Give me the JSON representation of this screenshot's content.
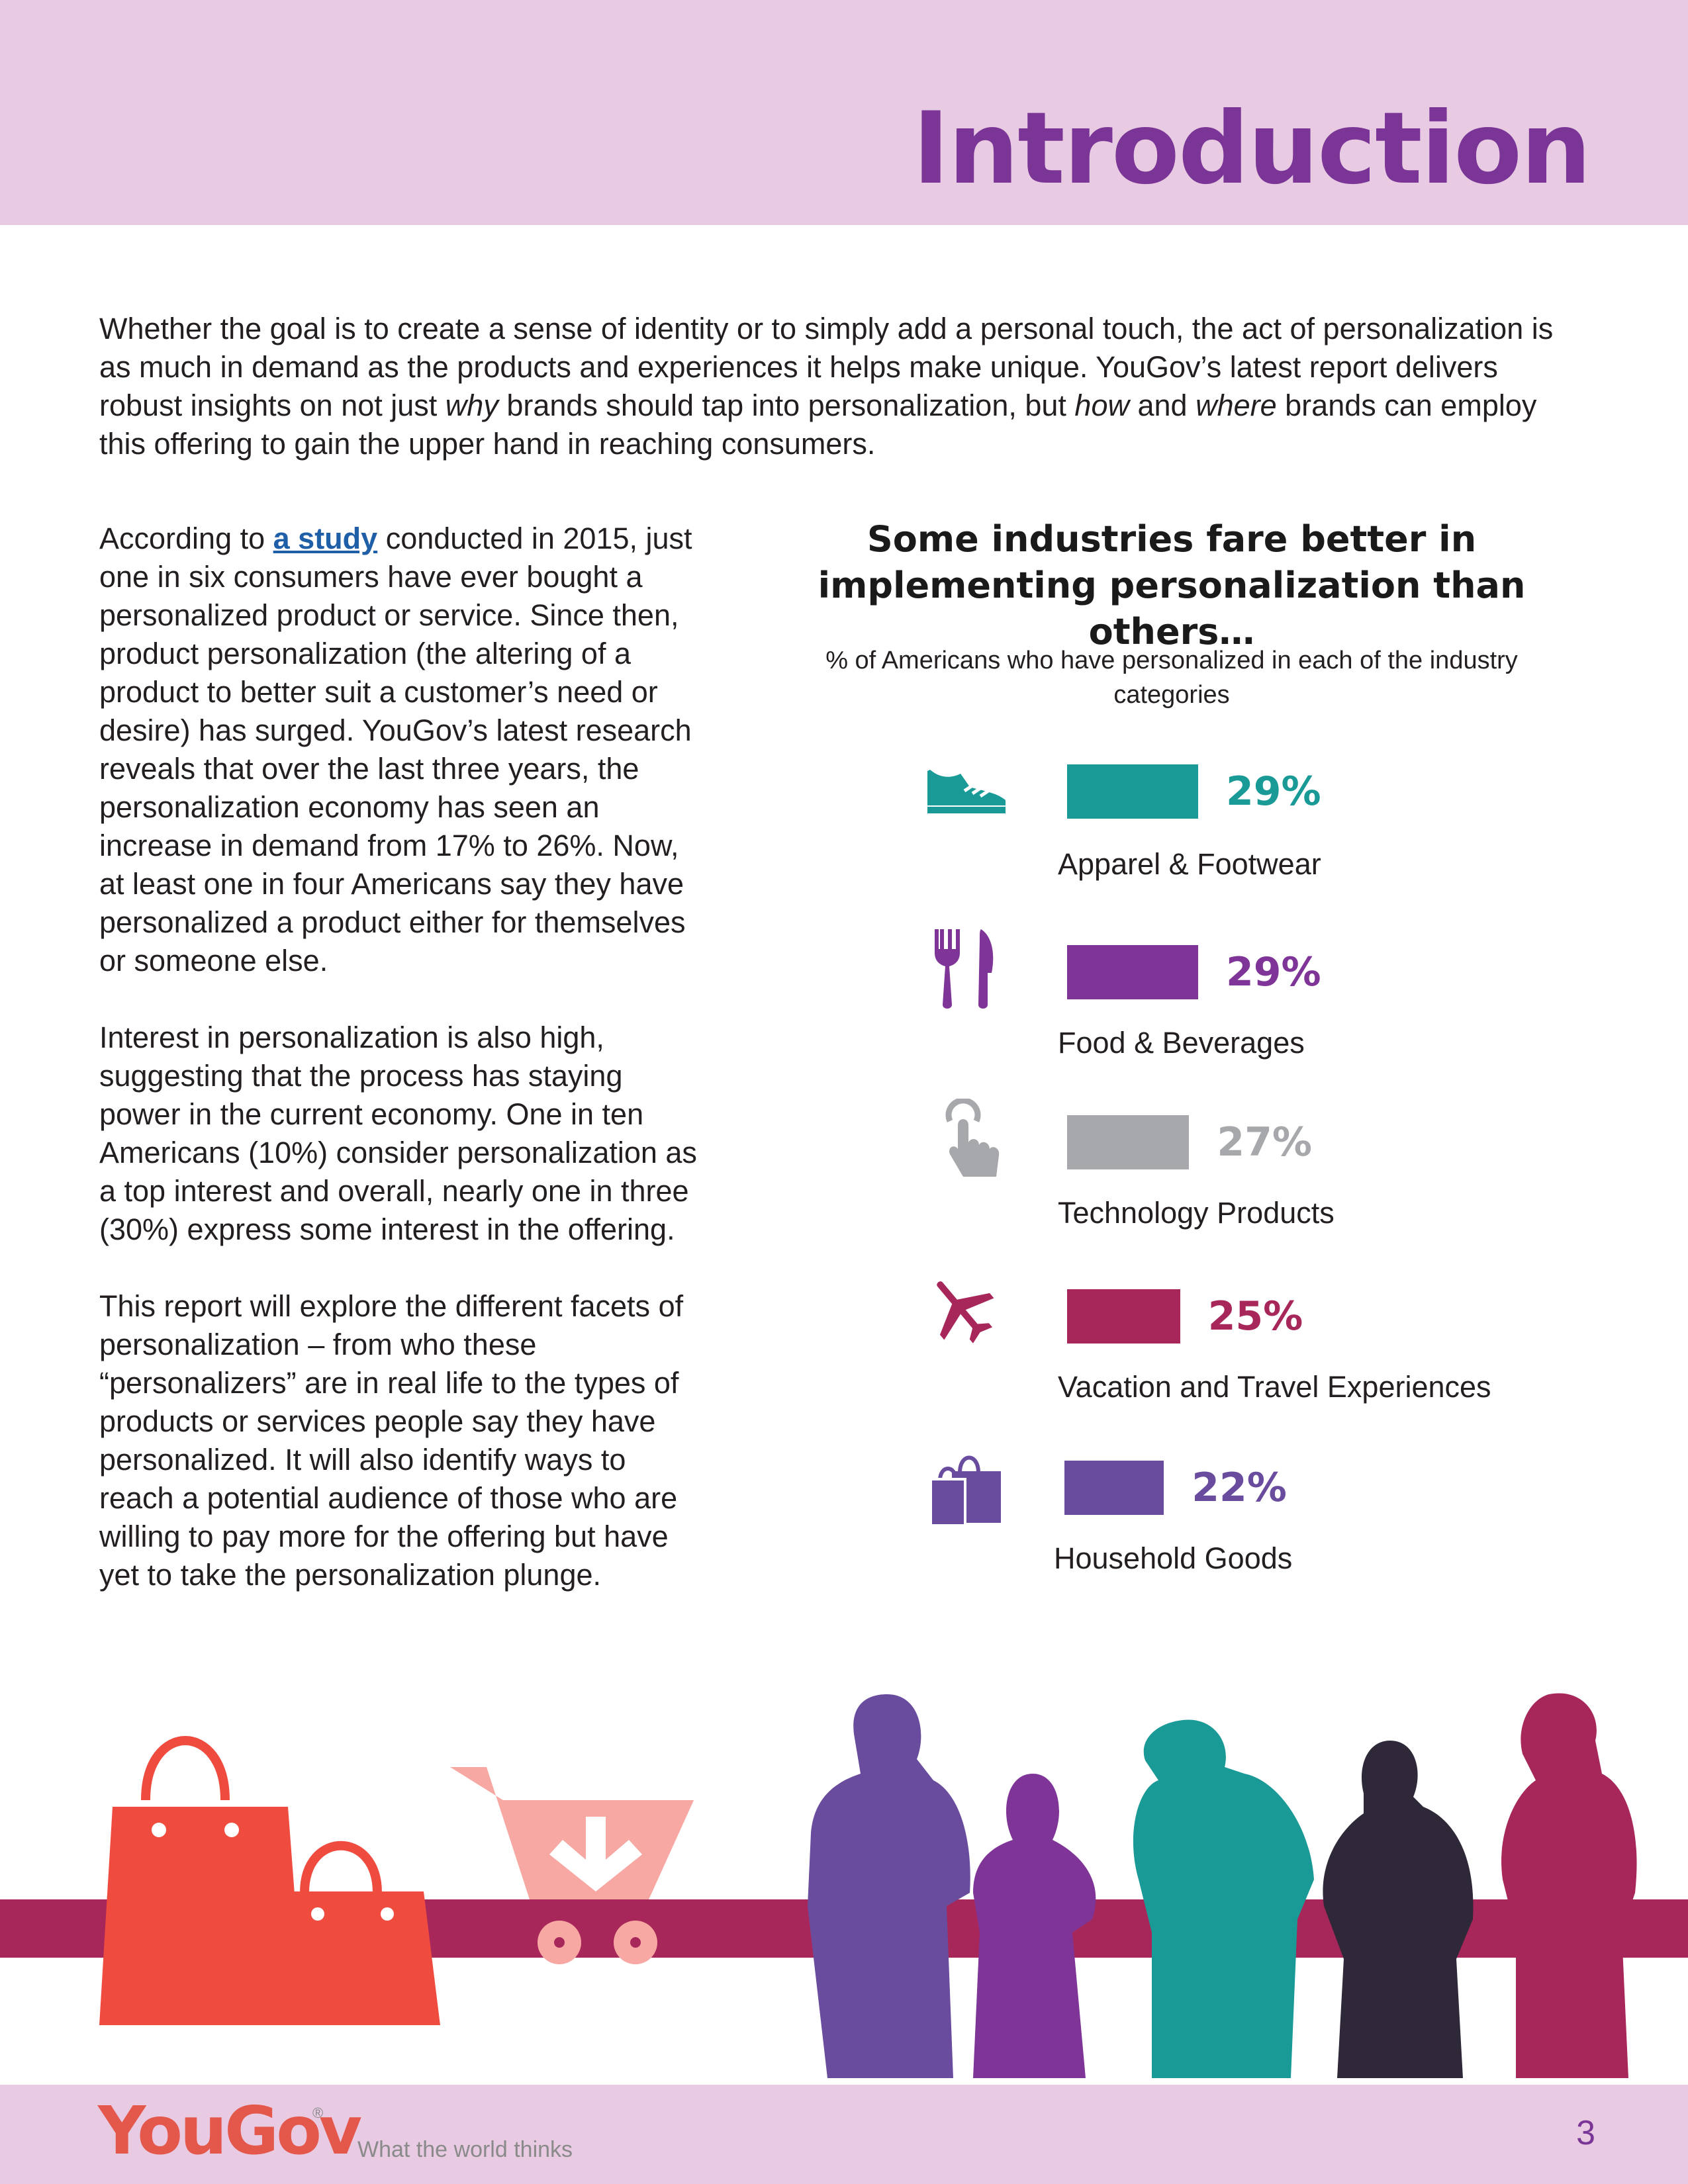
{
  "header": {
    "title": "Introduction"
  },
  "intro": {
    "t1": "Whether the goal is to create a sense of identity or to simply add a personal touch, the act of personalization is as much in demand as the products and experiences it helps make unique. YouGov’s latest report delivers robust insights on not just ",
    "em1": "why",
    "t2": " brands should tap into personalization, but ",
    "em2": "how",
    "t3": " and ",
    "em3": "where",
    "t4": " brands can employ this offering to gain the upper hand in reaching consumers."
  },
  "body": {
    "p1_pre": "According to ",
    "p1_link": "a study",
    "p1_post": " conducted in 2015, just one in six consumers have ever bought a personalized product or service. Since then, product personalization (the altering of a product to better suit a customer’s need or desire) has surged. YouGov’s latest research reveals that over the last three years, the personalization economy has seen an increase in demand from 17% to 26%. Now, at least one in four Americans say they have personalized a product either for themselves or someone else.",
    "p2": "Interest in personalization is also high, suggesting that the process has staying power in the current economy. One in ten Americans (10%) consider personalization as a top interest and overall, nearly one in three (30%) express some interest in the offering.",
    "p3": "This report will explore the different facets of personalization – from who these “personalizers” are in real life to the types of products or services people say they have personalized. It will also identify ways to reach a potential audience of those who are willing to pay more for the offering but have yet to take the personalization plunge."
  },
  "chart_data": {
    "type": "bar",
    "title": "Some industries fare better in implementing personalization than others…",
    "subtitle": "% of Americans who have personalized in each of the industry categories",
    "categories": [
      "Apparel & Footwear",
      "Food & Beverages",
      "Technology Products",
      "Vacation and Travel Experiences",
      "Household Goods"
    ],
    "values": [
      29,
      29,
      27,
      25,
      22
    ],
    "value_labels": [
      "29%",
      "29%",
      "27%",
      "25%",
      "22%"
    ],
    "colors": [
      "#1a9a96",
      "#7f3597",
      "#a7a8ab",
      "#a8275a",
      "#6a4c9e"
    ],
    "icons": [
      "sneaker-icon",
      "fork-knife-icon",
      "touch-finger-icon",
      "airplane-icon",
      "shopping-bags-icon"
    ],
    "xlim": [
      0,
      29
    ]
  },
  "footer": {
    "logo": "YouGov",
    "reg": "®",
    "tagline": "What the world thinks",
    "page_number": "3"
  }
}
